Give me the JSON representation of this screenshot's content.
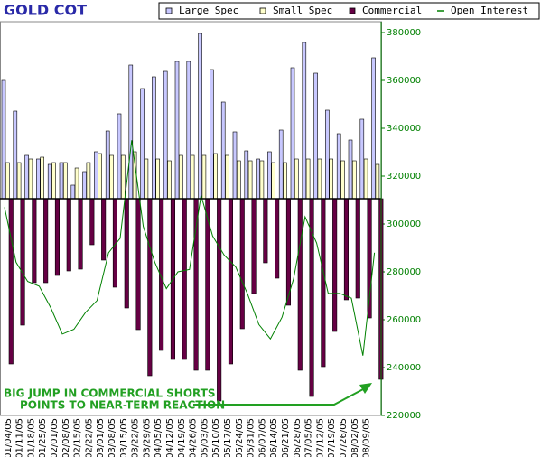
{
  "chart_data": {
    "type": "bar",
    "title": "GOLD COT",
    "categories": [
      null,
      "01/04/05",
      "01/11/05",
      "01/18/05",
      "01/25/05",
      "02/01/05",
      "02/08/05",
      "02/15/05",
      "02/22/05",
      "03/01/05",
      "03/08/05",
      "03/15/05",
      "03/22/05",
      "03/29/05",
      "04/05/05",
      "04/12/05",
      "04/19/05",
      "04/26/05",
      "05/03/05",
      "05/10/05",
      "05/17/05",
      "05/24/05",
      "05/31/05",
      "06/07/05",
      "06/14/05",
      "06/21/05",
      "06/28/05",
      "07/05/05",
      "07/12/05",
      "07/19/05",
      "07/26/05",
      "08/02/05",
      "08/09/05"
    ],
    "series": [
      {
        "name": "Large Spec",
        "color": "#c8c8ff",
        "values": [
          65500,
          48500,
          24000,
          22000,
          19000,
          20000,
          7500,
          15000,
          26000,
          37500,
          47000,
          74000,
          61000,
          67500,
          70500,
          76000,
          76000,
          91500,
          71500,
          53500,
          37000,
          26500,
          22000,
          26000,
          38000,
          72500,
          86500,
          69500,
          49000,
          36000,
          32500,
          44000,
          78000
        ]
      },
      {
        "name": "Small Spec",
        "color": "#ffffcc",
        "values": [
          20000,
          20000,
          22000,
          23000,
          20000,
          20000,
          17000,
          20000,
          25000,
          24000,
          24000,
          26000,
          22000,
          22000,
          21000,
          24000,
          24000,
          24000,
          25000,
          24000,
          21000,
          21000,
          21000,
          20000,
          20000,
          22000,
          22000,
          22000,
          22000,
          21000,
          21000,
          22000,
          19000
        ]
      },
      {
        "name": "Commercial",
        "color": "#660044",
        "values": [
          -91500,
          -70000,
          -46500,
          -46500,
          -42500,
          -40000,
          -39000,
          -25500,
          -34000,
          -49000,
          -60500,
          -72500,
          -98000,
          -84000,
          -89000,
          -89000,
          -95000,
          -95000,
          -112000,
          -91500,
          -72000,
          -52500,
          -35500,
          -44000,
          -59000,
          -95000,
          -109500,
          -93000,
          -73500,
          -56000,
          -55000,
          -66000,
          -100000
        ]
      },
      {
        "name": "Open Interest",
        "color": "#008000",
        "axis": "y2",
        "values": [
          307000,
          284000,
          276000,
          274000,
          265000,
          254000,
          256000,
          263000,
          268000,
          288000,
          294000,
          335000,
          299000,
          284000,
          273000,
          280000,
          281000,
          312000,
          295000,
          287000,
          282000,
          271000,
          258000,
          252000,
          261000,
          277000,
          303000,
          292000,
          271000,
          271000,
          269000,
          245000,
          288000
        ]
      }
    ],
    "ylim": [
      -120000,
      92000
    ],
    "y2lim": [
      220000,
      380000
    ],
    "y2ticks": [
      220000,
      240000,
      260000,
      280000,
      300000,
      320000,
      340000,
      360000,
      380000
    ],
    "legend": "top-right",
    "annotations": [
      "BIG JUMP IN COMMERCIAL SHORTS",
      "POINTS TO NEAR-TERM REACTION"
    ]
  }
}
